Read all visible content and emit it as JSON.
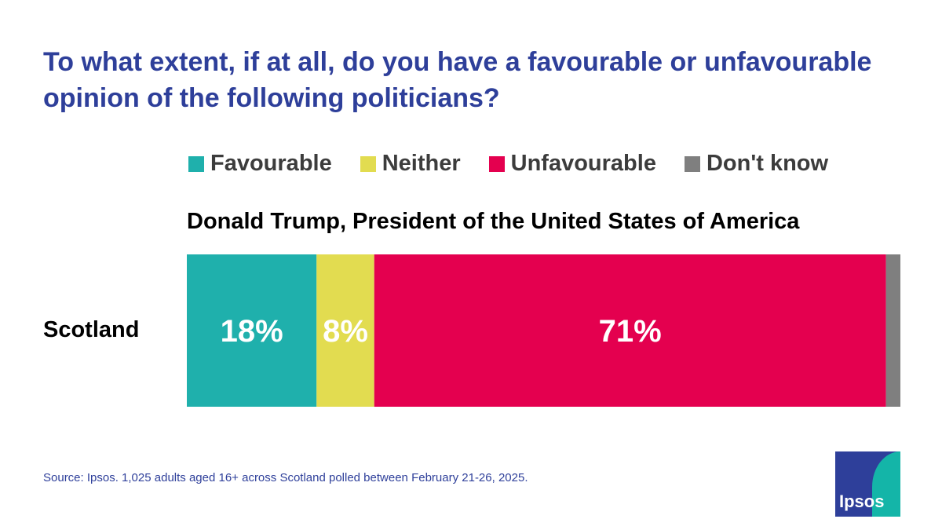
{
  "title": "To what extent, if at all, do you have a favourable or unfavourable opinion of the following politicians?",
  "legend": [
    {
      "label": "Favourable",
      "color": "#1fb0ac"
    },
    {
      "label": "Neither",
      "color": "#e2dc50"
    },
    {
      "label": "Unfavourable",
      "color": "#e4004f"
    },
    {
      "label": "Don't know",
      "color": "#7f7f7f"
    }
  ],
  "chart_data": {
    "type": "bar",
    "orientation": "horizontal",
    "stacked": true,
    "title": "Donald Trump, President of the United States of America",
    "categories": [
      "Scotland"
    ],
    "series": [
      {
        "name": "Favourable",
        "values": [
          18
        ],
        "color": "#1fb0ac",
        "data_label": "18%"
      },
      {
        "name": "Neither",
        "values": [
          8
        ],
        "color": "#e2dc50",
        "data_label": "8%"
      },
      {
        "name": "Unfavourable",
        "values": [
          71
        ],
        "color": "#e4004f",
        "data_label": "71%"
      },
      {
        "name": "Don't know",
        "values": [
          2
        ],
        "color": "#7f7f7f",
        "data_label": ""
      }
    ],
    "xlim": [
      0,
      99
    ],
    "legend_position": "top"
  },
  "source": "Source: Ipsos. 1,025 adults aged 16+ across Scotland polled between February 21-26, 2025.",
  "logo": {
    "text": "Ipsos"
  }
}
